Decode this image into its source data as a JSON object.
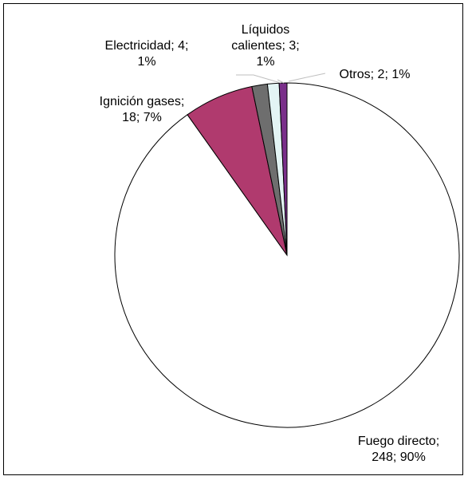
{
  "chart_data": {
    "type": "pie",
    "title": "",
    "slices": [
      {
        "label": "Fuego directo",
        "value": 248,
        "percent": "90%",
        "color": "#ffffff"
      },
      {
        "label": "Ignición gases",
        "value": 18,
        "percent": "7%",
        "color": "#b03a6e"
      },
      {
        "label": "Electricidad",
        "value": 4,
        "percent": "1%",
        "color": "#6e6e6e"
      },
      {
        "label": "Líquidos calientes",
        "value": 3,
        "percent": "1%",
        "color": "#e3f4f4"
      },
      {
        "label": "Otros",
        "value": 2,
        "percent": "1%",
        "color": "#7a2f8a"
      }
    ],
    "data_labels": [
      [
        "Fuego directo;",
        "248; 90%"
      ],
      [
        "Ignición gases;",
        "18; 7%"
      ],
      [
        "Electricidad; 4;",
        "1%"
      ],
      [
        "Líquidos",
        "calientes; 3;",
        "1%"
      ],
      [
        "Otros; 2; 1%"
      ]
    ],
    "legend": "none",
    "start_angle_deg": 0,
    "direction": "counterclockwise"
  }
}
